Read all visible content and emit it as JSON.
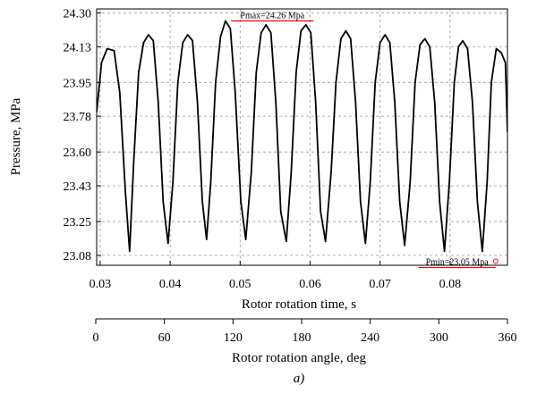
{
  "chart_data": {
    "type": "line",
    "title": "",
    "ylabel": "Pressure, MPa",
    "xlabel": "Rotor rotation time, s",
    "x2label": "Rotor rotation angle, deg",
    "caption": "a)",
    "xlim": [
      0.0295,
      0.0882
    ],
    "ylim": [
      23.03,
      24.32
    ],
    "x2lim": [
      0,
      360
    ],
    "yticks": [
      23.08,
      23.25,
      23.43,
      23.6,
      23.78,
      23.95,
      24.13,
      24.3
    ],
    "ytick_labels": [
      "23.08",
      "23.25",
      "23.43",
      "23.60",
      "23.78",
      "23.95",
      "24.13",
      "24.30"
    ],
    "xticks": [
      0.03,
      0.04,
      0.05,
      0.06,
      0.07,
      0.08
    ],
    "xtick_labels": [
      "0.03",
      "0.04",
      "0.05",
      "0.06",
      "0.07",
      "0.08"
    ],
    "x2ticks": [
      0,
      60,
      120,
      180,
      240,
      300,
      360
    ],
    "x2tick_labels": [
      "0",
      "60",
      "120",
      "180",
      "240",
      "300",
      "360"
    ],
    "grid": true,
    "line_color": "#000000",
    "marker_color": "#ff0000",
    "series": [
      {
        "x": [
          0.0295,
          0.0302,
          0.031,
          0.032,
          0.0328,
          0.0336,
          0.0342,
          0.0348,
          0.0355,
          0.0362,
          0.0369,
          0.0376,
          0.0383,
          0.039,
          0.0397,
          0.0404,
          0.0411,
          0.0418,
          0.0425,
          0.0432,
          0.0439,
          0.0446,
          0.0452,
          0.0458,
          0.0465,
          0.0472,
          0.0479,
          0.0486,
          0.0493,
          0.0501,
          0.0508,
          0.0516,
          0.0523,
          0.053,
          0.0537,
          0.0544,
          0.0551,
          0.0558,
          0.0566,
          0.0573,
          0.058,
          0.0587,
          0.0594,
          0.0601,
          0.0608,
          0.0615,
          0.0622,
          0.063,
          0.0637,
          0.0644,
          0.0651,
          0.0658,
          0.0665,
          0.0672,
          0.0679,
          0.0686,
          0.0693,
          0.07,
          0.0707,
          0.0714,
          0.0721,
          0.0728,
          0.0735,
          0.0743,
          0.075,
          0.0757,
          0.0764,
          0.0771,
          0.0778,
          0.0785,
          0.0792,
          0.0799,
          0.0806,
          0.0812,
          0.0818,
          0.0825,
          0.0832,
          0.0839,
          0.0846,
          0.0853,
          0.0859,
          0.0866,
          0.0873,
          0.0879,
          0.0882
        ],
        "y": [
          23.8,
          24.05,
          24.12,
          24.11,
          23.9,
          23.4,
          23.1,
          23.55,
          24.0,
          24.15,
          24.19,
          24.16,
          23.85,
          23.35,
          23.14,
          23.45,
          23.95,
          24.15,
          24.19,
          24.16,
          23.85,
          23.35,
          23.16,
          23.45,
          23.95,
          24.18,
          24.26,
          24.22,
          23.9,
          23.35,
          23.16,
          23.5,
          24.0,
          24.2,
          24.24,
          24.2,
          23.85,
          23.3,
          23.15,
          23.5,
          24.0,
          24.21,
          24.24,
          24.2,
          23.85,
          23.3,
          23.15,
          23.5,
          23.95,
          24.17,
          24.21,
          24.17,
          23.85,
          23.35,
          23.14,
          23.45,
          23.95,
          24.15,
          24.19,
          24.15,
          23.85,
          23.35,
          23.13,
          23.45,
          23.95,
          24.14,
          24.17,
          24.13,
          23.85,
          23.35,
          23.1,
          23.45,
          23.95,
          24.13,
          24.16,
          24.12,
          23.85,
          23.35,
          23.1,
          23.45,
          23.95,
          24.12,
          24.1,
          24.05,
          23.7
        ]
      }
    ],
    "annotations": [
      {
        "text": "Pmax=24.26 Mpa",
        "x": 0.0487,
        "y": 24.26,
        "x_end": 0.0605
      },
      {
        "text": "Pmin=23.05 Mpa",
        "x": 0.0865,
        "y": 23.05,
        "x_start": 0.0755
      }
    ]
  }
}
